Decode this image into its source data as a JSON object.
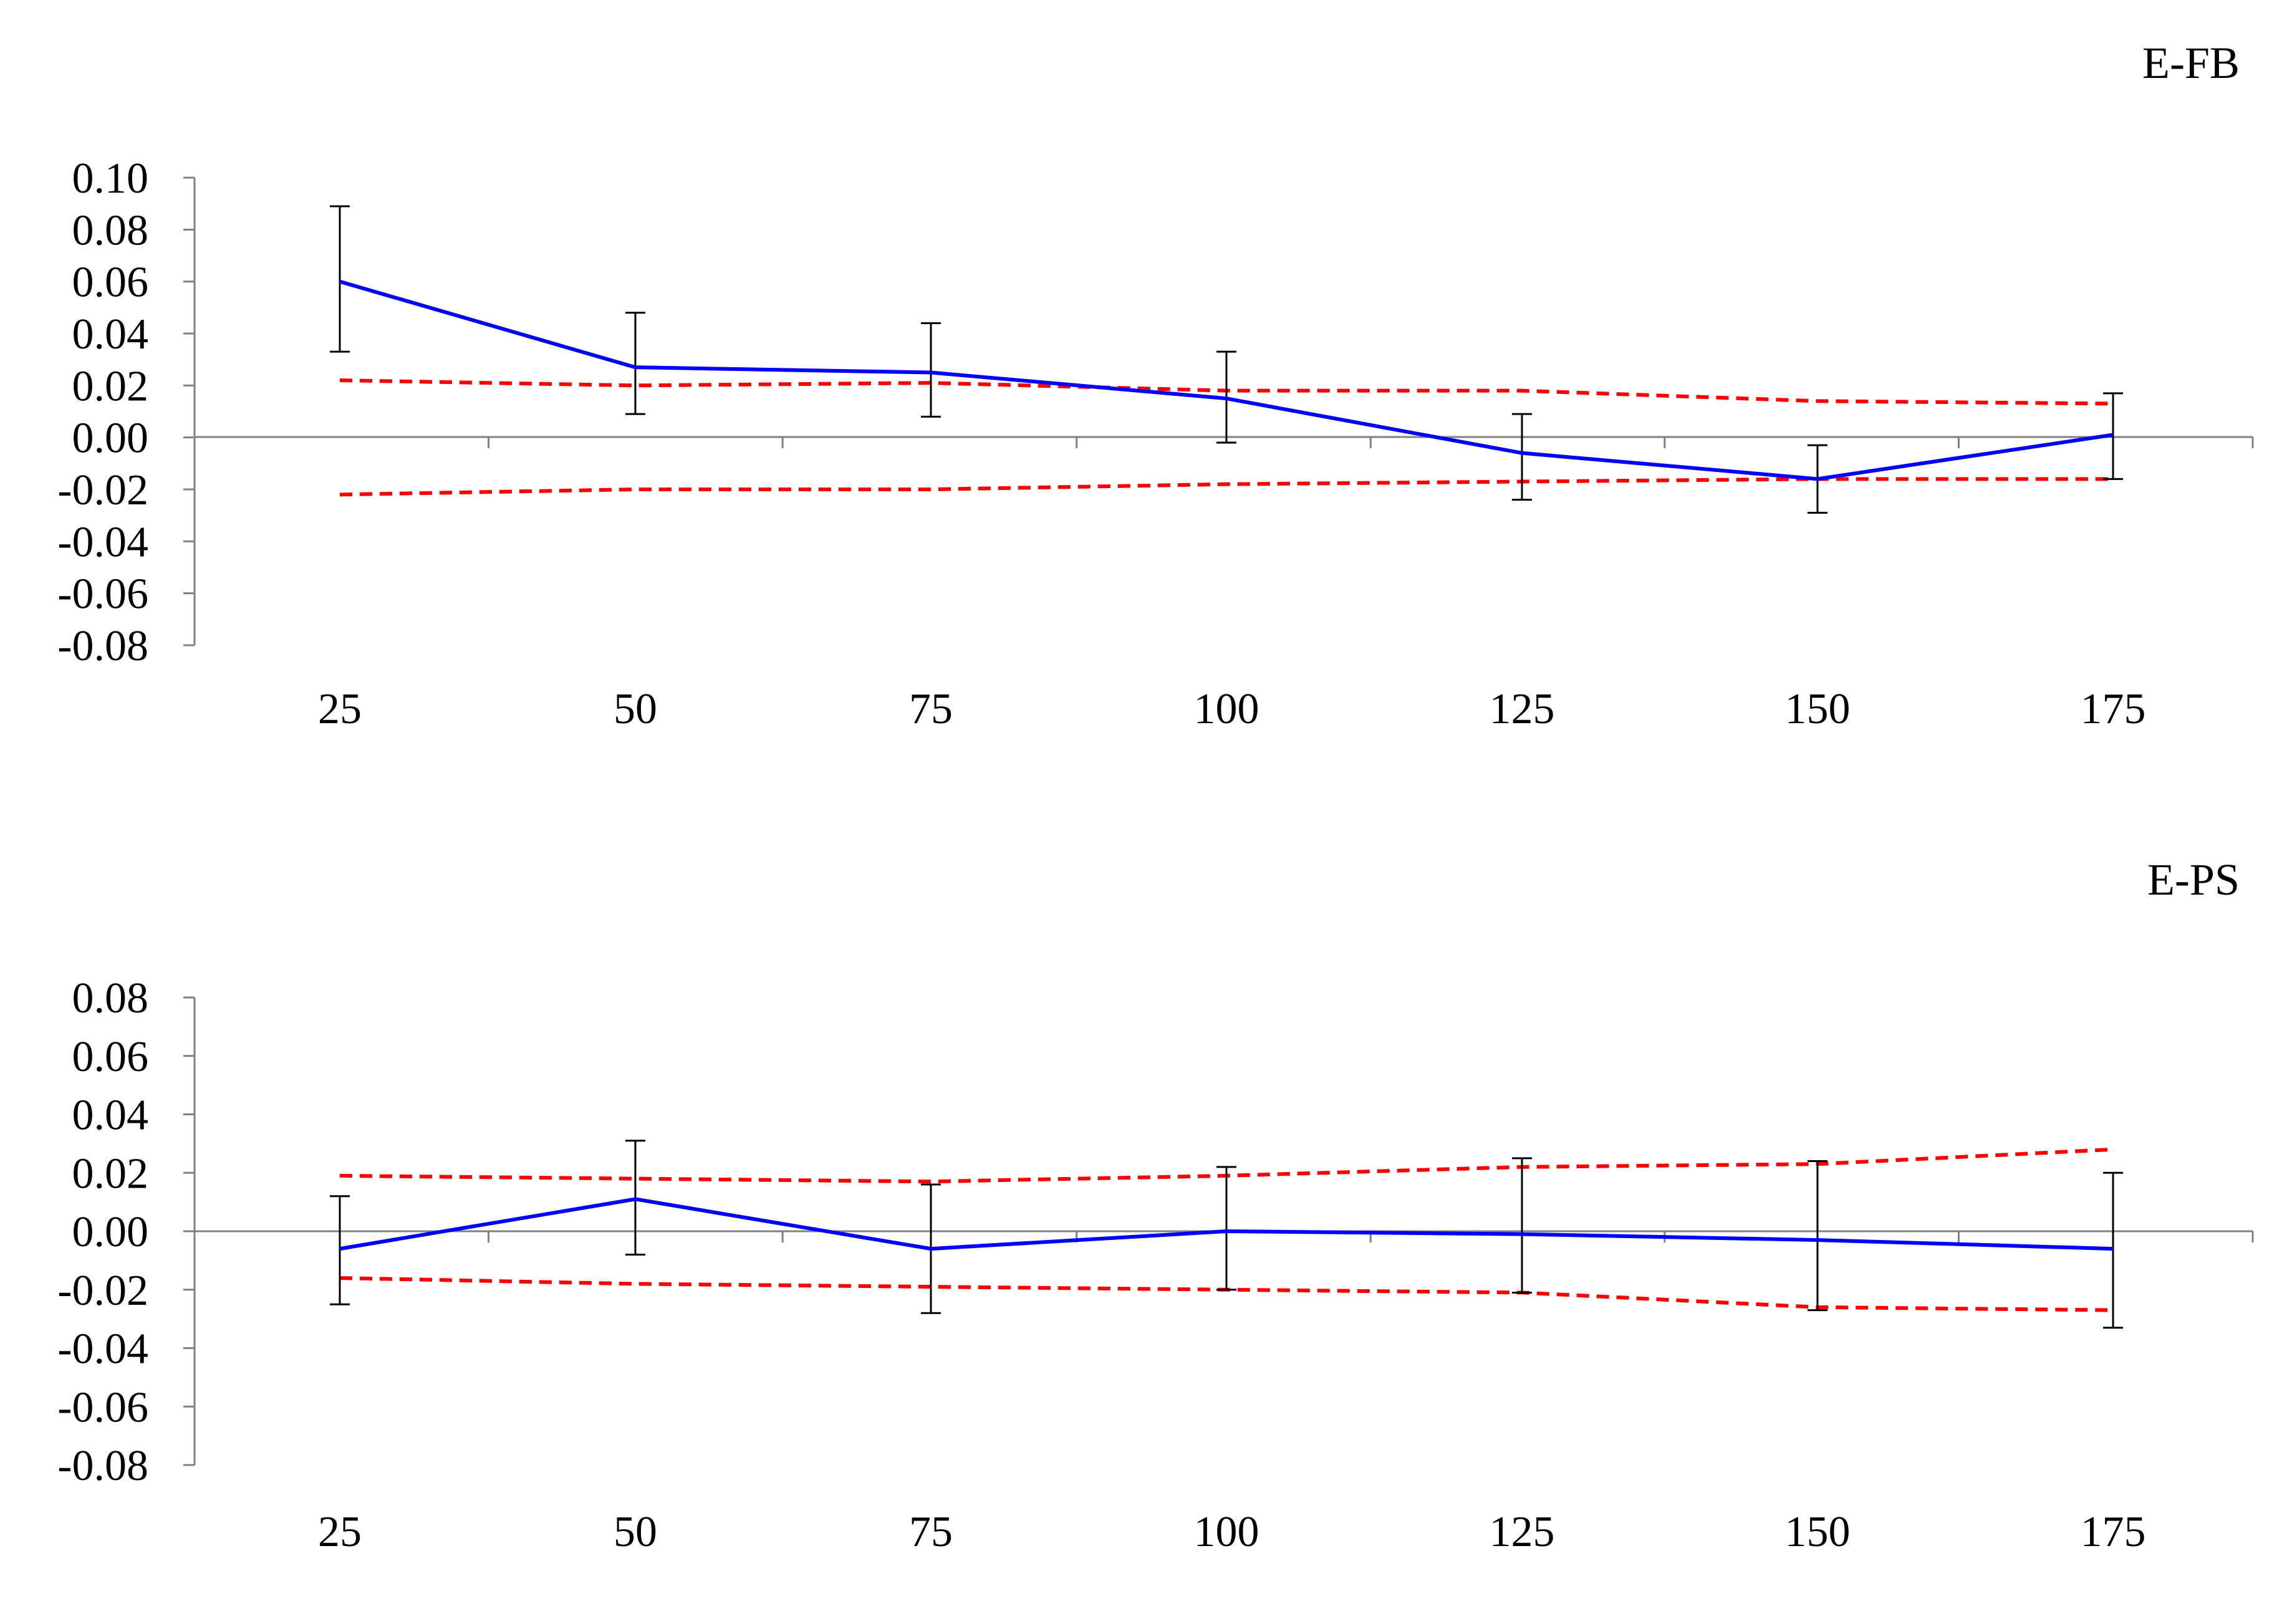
{
  "colors": {
    "main": "#0000ff",
    "bounds": "#ff0000",
    "axis": "#808080",
    "errorbar": "#000000"
  },
  "chart_data": [
    {
      "type": "line",
      "title": "E-FB",
      "x": [
        25,
        50,
        75,
        100,
        125,
        150,
        175
      ],
      "ylim": [
        -0.08,
        0.1
      ],
      "yticks": [
        "0.10",
        "0.08",
        "0.06",
        "0.04",
        "0.02",
        "0.00",
        "-0.02",
        "-0.04",
        "-0.06",
        "-0.08"
      ],
      "series": [
        {
          "role": "main",
          "values": [
            0.06,
            0.027,
            0.025,
            0.015,
            -0.006,
            -0.016,
            0.001
          ],
          "error_upper": [
            0.089,
            0.048,
            0.044,
            0.033,
            0.009,
            -0.003,
            0.017
          ],
          "error_lower": [
            0.033,
            0.009,
            0.008,
            -0.002,
            -0.024,
            -0.029,
            -0.016
          ]
        },
        {
          "role": "upper-bound",
          "style": "dashed",
          "values": [
            0.022,
            0.02,
            0.021,
            0.018,
            0.018,
            0.014,
            0.013
          ]
        },
        {
          "role": "lower-bound",
          "style": "dashed",
          "values": [
            -0.022,
            -0.02,
            -0.02,
            -0.018,
            -0.017,
            -0.016,
            -0.016
          ]
        }
      ]
    },
    {
      "type": "line",
      "title": "E-PS",
      "x": [
        25,
        50,
        75,
        100,
        125,
        150,
        175
      ],
      "ylim": [
        -0.08,
        0.08
      ],
      "yticks": [
        "0.08",
        "0.06",
        "0.04",
        "0.02",
        "0.00",
        "-0.02",
        "-0.04",
        "-0.06",
        "-0.08"
      ],
      "series": [
        {
          "role": "main",
          "values": [
            -0.006,
            0.011,
            -0.006,
            0.0,
            -0.001,
            -0.003,
            -0.006
          ],
          "error_upper": [
            0.012,
            0.031,
            0.016,
            0.022,
            0.025,
            0.024,
            0.02
          ],
          "error_lower": [
            -0.025,
            -0.008,
            -0.028,
            -0.02,
            -0.021,
            -0.027,
            -0.033
          ]
        },
        {
          "role": "upper-bound",
          "style": "dashed",
          "values": [
            0.019,
            0.018,
            0.017,
            0.019,
            0.022,
            0.023,
            0.028
          ]
        },
        {
          "role": "lower-bound",
          "style": "dashed",
          "values": [
            -0.016,
            -0.018,
            -0.019,
            -0.02,
            -0.021,
            -0.026,
            -0.027
          ]
        }
      ]
    }
  ]
}
